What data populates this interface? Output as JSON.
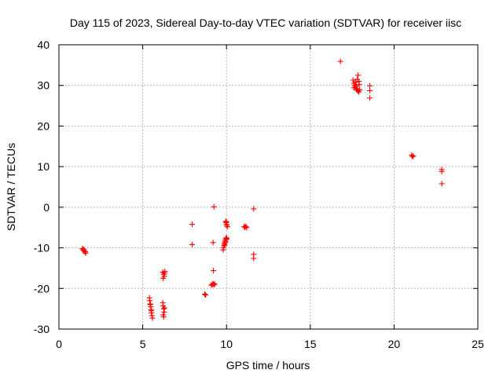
{
  "chart_data": {
    "type": "scatter",
    "title": "Day 115 of 2023, Sidereal Day-to-day VTEC variation (SDTVAR) for receiver iisc",
    "xlabel": "GPS time / hours",
    "ylabel": "SDTVAR / TECUs",
    "xlim": [
      0,
      25
    ],
    "ylim": [
      -30,
      40
    ],
    "xticks": [
      0,
      5,
      10,
      15,
      20,
      25
    ],
    "yticks": [
      -30,
      -20,
      -10,
      0,
      10,
      20,
      30,
      40
    ],
    "grid": true,
    "marker": "+",
    "color": "#ff0000",
    "series": [
      {
        "name": "SDTVAR",
        "points": [
          [
            1.4,
            -10.2
          ],
          [
            1.45,
            -10.5
          ],
          [
            1.5,
            -10.8
          ],
          [
            1.55,
            -11.0
          ],
          [
            1.6,
            -11.3
          ],
          [
            1.48,
            -10.4
          ],
          [
            1.58,
            -10.9
          ],
          [
            5.4,
            -22.3
          ],
          [
            5.42,
            -23.0
          ],
          [
            5.45,
            -23.8
          ],
          [
            5.48,
            -24.5
          ],
          [
            5.5,
            -25.2
          ],
          [
            5.52,
            -26.0
          ],
          [
            5.55,
            -26.7
          ],
          [
            5.58,
            -27.3
          ],
          [
            5.45,
            -24.0
          ],
          [
            5.52,
            -25.5
          ],
          [
            6.2,
            -16.0
          ],
          [
            6.25,
            -16.5
          ],
          [
            6.28,
            -17.0
          ],
          [
            6.22,
            -17.5
          ],
          [
            6.3,
            -16.2
          ],
          [
            6.32,
            -15.8
          ],
          [
            6.2,
            -23.5
          ],
          [
            6.22,
            -24.3
          ],
          [
            6.25,
            -25.0
          ],
          [
            6.28,
            -25.8
          ],
          [
            6.22,
            -26.5
          ],
          [
            6.25,
            -27.0
          ],
          [
            6.3,
            -24.8
          ],
          [
            7.95,
            -4.2
          ],
          [
            7.95,
            -9.2
          ],
          [
            8.7,
            -21.4
          ],
          [
            8.75,
            -21.6
          ],
          [
            9.2,
            -8.7
          ],
          [
            9.22,
            -15.6
          ],
          [
            9.1,
            -19.2
          ],
          [
            9.15,
            -19.0
          ],
          [
            9.2,
            -18.8
          ],
          [
            9.25,
            -19.1
          ],
          [
            9.3,
            -18.9
          ],
          [
            9.25,
            0.1
          ],
          [
            9.8,
            -10.5
          ],
          [
            9.82,
            -10.0
          ],
          [
            9.85,
            -9.5
          ],
          [
            9.88,
            -9.0
          ],
          [
            9.9,
            -8.7
          ],
          [
            9.92,
            -8.3
          ],
          [
            9.95,
            -8.0
          ],
          [
            9.97,
            -7.7
          ],
          [
            10.0,
            -7.5
          ],
          [
            10.02,
            -7.8
          ],
          [
            9.9,
            -9.3
          ],
          [
            9.95,
            -8.6
          ],
          [
            9.95,
            -3.5
          ],
          [
            9.98,
            -3.8
          ],
          [
            10.0,
            -4.2
          ],
          [
            10.02,
            -4.5
          ],
          [
            10.05,
            -4.8
          ],
          [
            10.0,
            -3.6
          ],
          [
            11.05,
            -4.8
          ],
          [
            11.1,
            -4.9
          ],
          [
            11.15,
            -4.7
          ],
          [
            11.2,
            -5.0
          ],
          [
            11.62,
            -0.4
          ],
          [
            11.62,
            -11.6
          ],
          [
            11.62,
            -12.6
          ],
          [
            16.8,
            35.9
          ],
          [
            17.55,
            31.3
          ],
          [
            17.6,
            30.5
          ],
          [
            17.65,
            30.0
          ],
          [
            17.7,
            29.6
          ],
          [
            17.75,
            29.2
          ],
          [
            17.8,
            28.9
          ],
          [
            17.85,
            28.6
          ],
          [
            17.9,
            28.4
          ],
          [
            17.95,
            28.9
          ],
          [
            17.6,
            29.4
          ],
          [
            17.7,
            30.8
          ],
          [
            17.8,
            31.5
          ],
          [
            17.85,
            32.5
          ],
          [
            17.9,
            31.0
          ],
          [
            17.92,
            30.2
          ],
          [
            17.75,
            29.9
          ],
          [
            18.55,
            29.9
          ],
          [
            18.55,
            28.7
          ],
          [
            18.55,
            26.9
          ],
          [
            21.05,
            12.8
          ],
          [
            21.1,
            12.5
          ],
          [
            21.15,
            12.6
          ],
          [
            22.85,
            9.3
          ],
          [
            22.85,
            8.8
          ],
          [
            22.85,
            5.8
          ]
        ]
      }
    ]
  }
}
